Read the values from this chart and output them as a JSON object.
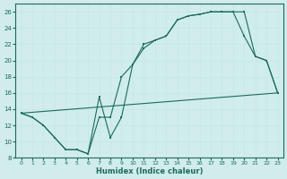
{
  "title": "",
  "xlabel": "Humidex (Indice chaleur)",
  "ylabel": "",
  "bg_color": "#d0ecec",
  "line_color": "#1a6b5a",
  "grid_color": "#c8e8e8",
  "xlim": [
    -0.5,
    23.5
  ],
  "ylim": [
    8,
    27
  ],
  "yticks": [
    8,
    10,
    12,
    14,
    16,
    18,
    20,
    22,
    24,
    26
  ],
  "xticks": [
    0,
    1,
    2,
    3,
    4,
    5,
    6,
    7,
    8,
    9,
    10,
    11,
    12,
    13,
    14,
    15,
    16,
    17,
    18,
    19,
    20,
    21,
    22,
    23
  ],
  "line1_x": [
    0,
    1,
    2,
    3,
    4,
    5,
    6,
    7,
    8,
    9,
    10,
    11,
    12,
    13,
    14,
    15,
    16,
    17,
    18,
    19,
    20,
    21,
    22,
    23
  ],
  "line1_y": [
    13.5,
    13.0,
    12.0,
    10.5,
    9.0,
    9.0,
    8.5,
    13.0,
    13.0,
    18.0,
    19.5,
    21.5,
    22.5,
    23.0,
    25.0,
    25.5,
    25.7,
    26.0,
    26.0,
    26.0,
    26.0,
    20.5,
    20.0,
    16.0
  ],
  "line2_x": [
    0,
    1,
    2,
    3,
    4,
    5,
    6,
    7,
    8,
    9,
    10,
    11,
    12,
    13,
    14,
    15,
    16,
    17,
    18,
    19,
    20,
    21,
    22,
    23
  ],
  "line2_y": [
    13.5,
    13.0,
    12.0,
    10.5,
    9.0,
    9.0,
    8.5,
    15.5,
    10.5,
    13.0,
    19.5,
    22.0,
    22.5,
    23.0,
    25.0,
    25.5,
    25.7,
    26.0,
    26.0,
    26.0,
    23.0,
    20.5,
    20.0,
    16.0
  ],
  "line3_x": [
    0,
    23
  ],
  "line3_y": [
    13.5,
    16.0
  ]
}
